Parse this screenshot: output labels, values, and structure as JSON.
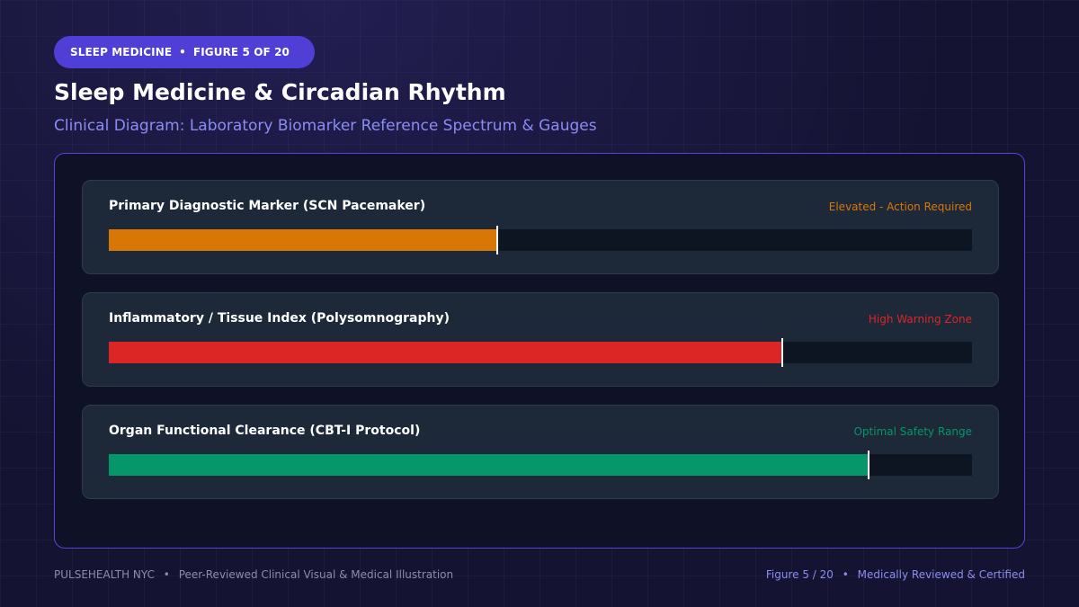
{
  "header": {
    "badge_category": "SLEEP MEDICINE",
    "badge_separator": "•",
    "badge_figure": "FIGURE 5 OF 20",
    "title": "Sleep Medicine & Circadian Rhythm",
    "subtitle": "Clinical Diagram: Laboratory Biomarker Reference Spectrum & Gauges"
  },
  "gauges": [
    {
      "label": "Primary Diagnostic Marker (SCN Pacemaker)",
      "status": "Elevated - Action Required",
      "level_percent": 45,
      "color": "#d97706"
    },
    {
      "label": "Inflammatory / Tissue Index (Polysomnography)",
      "status": "High Warning Zone",
      "level_percent": 78,
      "color": "#dc2626"
    },
    {
      "label": "Organ Functional Clearance (CBT-I Protocol)",
      "status": "Optimal Safety Range",
      "level_percent": 88,
      "color": "#059669"
    }
  ],
  "footer": {
    "brand": "PULSEHEALTH NYC",
    "separator": "•",
    "tagline": "Peer-Reviewed Clinical Visual & Medical Illustration",
    "figure": "Figure 5 / 20",
    "certification": "Medically Reviewed & Certified"
  }
}
